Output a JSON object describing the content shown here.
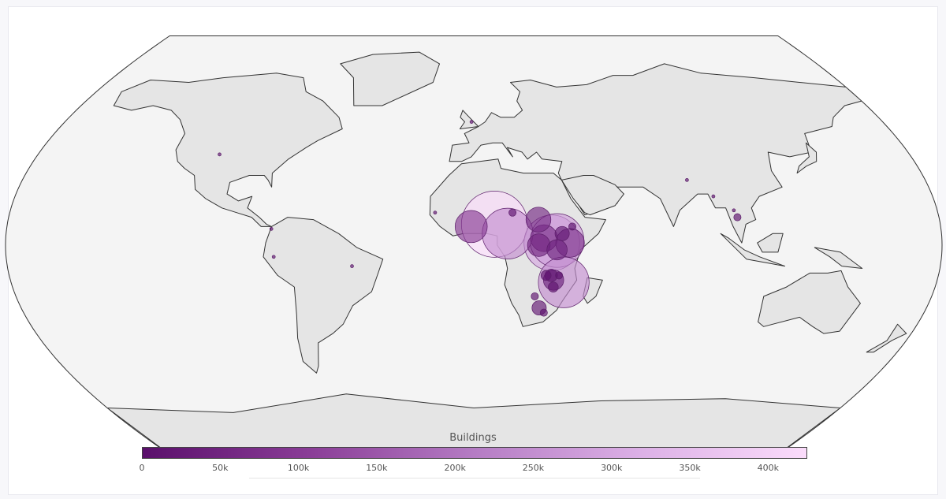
{
  "colorbar": {
    "title": "Buildings",
    "min": 0,
    "max": 425000,
    "ticks": [
      {
        "value": 0,
        "label": "0"
      },
      {
        "value": 50000,
        "label": "50k"
      },
      {
        "value": 100000,
        "label": "100k"
      },
      {
        "value": 150000,
        "label": "150k"
      },
      {
        "value": 200000,
        "label": "200k"
      },
      {
        "value": 250000,
        "label": "250k"
      },
      {
        "value": 300000,
        "label": "300k"
      },
      {
        "value": 350000,
        "label": "350k"
      },
      {
        "value": 400000,
        "label": "400k"
      }
    ],
    "color_stops": [
      "#5a0f6b",
      "#8a3d97",
      "#b57cc4",
      "#dcb0e6",
      "#fbdcfb"
    ]
  },
  "colors": {
    "ocean": "#f4f4f4",
    "land": "#e5e5e5",
    "border": "#333333",
    "marker_outline": "#5c1f6a"
  },
  "chart_data": {
    "type": "scatter",
    "projection": "robinson",
    "series": [
      {
        "points": [
          {
            "lon": -105,
            "lat": 39,
            "buildings": 1000
          },
          {
            "lon": -78,
            "lat": 7,
            "buildings": 1000
          },
          {
            "lon": -77,
            "lat": -5,
            "buildings": 1000
          },
          {
            "lon": -47,
            "lat": -9,
            "buildings": 1000
          },
          {
            "lon": -1,
            "lat": 53,
            "buildings": 1000
          },
          {
            "lon": -15,
            "lat": 14,
            "buildings": 1000
          },
          {
            "lon": -1,
            "lat": 8,
            "buildings": 100000
          },
          {
            "lon": 8,
            "lat": 9,
            "buildings": 425000
          },
          {
            "lon": 13,
            "lat": 5,
            "buildings": 250000
          },
          {
            "lon": 15,
            "lat": 14,
            "buildings": 5000
          },
          {
            "lon": 25,
            "lat": 11,
            "buildings": 60000
          },
          {
            "lon": 27,
            "lat": 3,
            "buildings": 70000
          },
          {
            "lon": 25,
            "lat": 0,
            "buildings": 50000
          },
          {
            "lon": 30,
            "lat": 1,
            "buildings": 300000
          },
          {
            "lon": 32,
            "lat": 2,
            "buildings": 280000
          },
          {
            "lon": 37,
            "lat": 1,
            "buildings": 80000
          },
          {
            "lon": 32,
            "lat": -2,
            "buildings": 40000
          },
          {
            "lon": 34,
            "lat": 5,
            "buildings": 20000
          },
          {
            "lon": 38,
            "lat": 8,
            "buildings": 5000
          },
          {
            "lon": 28,
            "lat": -13,
            "buildings": 10000
          },
          {
            "lon": 30,
            "lat": -13,
            "buildings": 15000
          },
          {
            "lon": 33,
            "lat": -13,
            "buildings": 5000
          },
          {
            "lon": 31,
            "lat": -15,
            "buildings": 40000
          },
          {
            "lon": 35,
            "lat": -16,
            "buildings": 250000
          },
          {
            "lon": 31,
            "lat": -18,
            "buildings": 10000
          },
          {
            "lon": 24,
            "lat": -22,
            "buildings": 5000
          },
          {
            "lon": 26,
            "lat": -27,
            "buildings": 20000
          },
          {
            "lon": 28,
            "lat": -29,
            "buildings": 5000
          },
          {
            "lon": 85,
            "lat": 28,
            "buildings": 1000
          },
          {
            "lon": 94,
            "lat": 21,
            "buildings": 1000
          },
          {
            "lon": 101,
            "lat": 15,
            "buildings": 1000
          },
          {
            "lon": 102,
            "lat": 12,
            "buildings": 5000
          }
        ]
      }
    ]
  }
}
